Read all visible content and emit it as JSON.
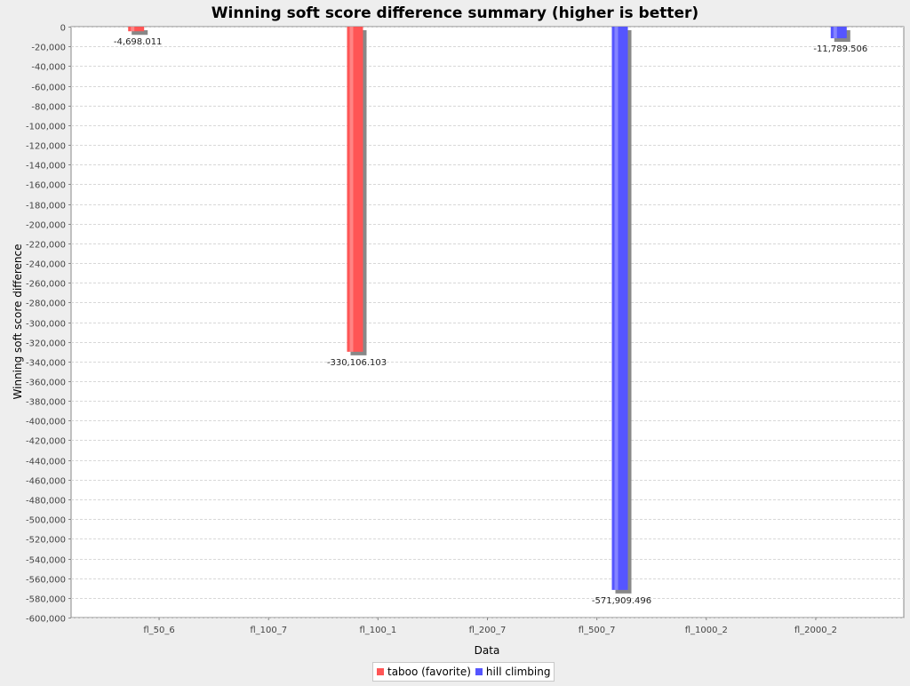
{
  "chart_data": {
    "type": "bar",
    "title": "Winning soft score difference summary (higher is better)",
    "xlabel": "Data",
    "ylabel": "Winning soft score difference",
    "categories": [
      "fl_50_6",
      "fl_100_7",
      "fl_100_1",
      "fl_200_7",
      "fl_500_7",
      "fl_1000_2",
      "fl_2000_2"
    ],
    "series": [
      {
        "name": "taboo (favorite)",
        "color": "#ff5555",
        "values": [
          -4698.011,
          null,
          -330106.103,
          null,
          null,
          null,
          null
        ],
        "labels": [
          "-4,698.011",
          "",
          "-330,106.103",
          "",
          "",
          "",
          ""
        ]
      },
      {
        "name": "hill climbing",
        "color": "#5555ff",
        "values": [
          null,
          null,
          null,
          null,
          -571909.496,
          null,
          -11789.506
        ],
        "labels": [
          "",
          "",
          "",
          "",
          "-571,909.496",
          "",
          "-11,789.506"
        ]
      }
    ],
    "ylim": [
      -600000,
      0
    ],
    "yticks": [
      "0",
      "-20,000",
      "-40,000",
      "-60,000",
      "-80,000",
      "-100,000",
      "-120,000",
      "-140,000",
      "-160,000",
      "-180,000",
      "-200,000",
      "-220,000",
      "-240,000",
      "-260,000",
      "-280,000",
      "-300,000",
      "-320,000",
      "-340,000",
      "-360,000",
      "-380,000",
      "-400,000",
      "-420,000",
      "-440,000",
      "-460,000",
      "-480,000",
      "-500,000",
      "-520,000",
      "-540,000",
      "-560,000",
      "-580,000",
      "-600,000"
    ],
    "ytick_values": [
      0,
      -20000,
      -40000,
      -60000,
      -80000,
      -100000,
      -120000,
      -140000,
      -160000,
      -180000,
      -200000,
      -220000,
      -240000,
      -260000,
      -280000,
      -300000,
      -320000,
      -340000,
      -360000,
      -380000,
      -400000,
      -420000,
      -440000,
      -460000,
      -480000,
      -500000,
      -520000,
      -540000,
      -560000,
      -580000,
      -600000
    ],
    "grid": true,
    "legend": "bottom"
  }
}
